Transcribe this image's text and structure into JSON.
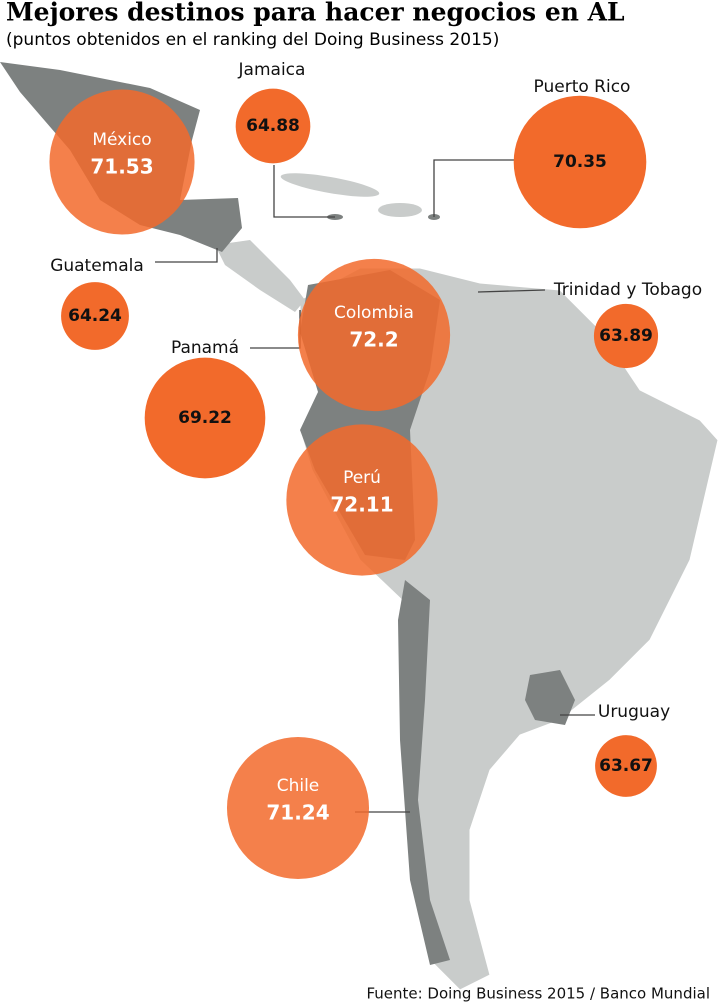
{
  "header": {
    "title": "Mejores destinos para hacer negocios en AL",
    "subtitle": "(puntos obtenidos en el ranking del Doing Business 2015)"
  },
  "countries": [
    {
      "name": "México",
      "value": 71.53
    },
    {
      "name": "Jamaica",
      "value": 64.88
    },
    {
      "name": "Puerto Rico",
      "value": 70.35
    },
    {
      "name": "Guatemala",
      "value": 64.24
    },
    {
      "name": "Trinidad y Tobago",
      "value": 63.89
    },
    {
      "name": "Panamá",
      "value": 69.22
    },
    {
      "name": "Colombia",
      "value": 72.2
    },
    {
      "name": "Perú",
      "value": 72.11
    },
    {
      "name": "Uruguay",
      "value": 63.67
    },
    {
      "name": "Chile",
      "value": 71.24
    }
  ],
  "source": "Fuente: Doing Business 2015 / Banco Mundial"
}
